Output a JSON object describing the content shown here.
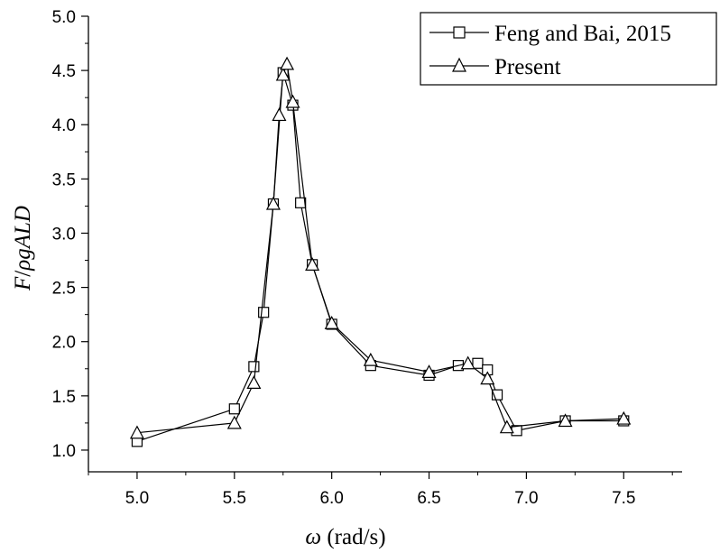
{
  "chart_data": {
    "type": "line",
    "xlabel": {
      "symbol": "ω",
      "unit": " (rad/s)"
    },
    "ylabel": {
      "prefix": "F",
      "sep": "/",
      "rest": "ρgALD"
    },
    "xlim": [
      4.75,
      7.8
    ],
    "ylim": [
      0.8,
      5.0
    ],
    "x_ticks": [
      5.0,
      5.5,
      6.0,
      6.5,
      7.0,
      7.5
    ],
    "x_tick_labels": [
      "5.0",
      "5.5",
      "6.0",
      "6.5",
      "7.0",
      "7.5"
    ],
    "y_ticks": [
      1.0,
      1.5,
      2.0,
      2.5,
      3.0,
      3.5,
      4.0,
      4.5,
      5.0
    ],
    "y_tick_labels": [
      "1.0",
      "1.5",
      "2.0",
      "2.5",
      "3.0",
      "3.5",
      "4.0",
      "4.5",
      "5.0"
    ],
    "legend_position": "top-right",
    "grid": false,
    "series": [
      {
        "name": "Feng and Bai, 2015",
        "marker": "square",
        "color": "#000000",
        "points": [
          [
            5.0,
            1.08
          ],
          [
            5.5,
            1.38
          ],
          [
            5.6,
            1.77
          ],
          [
            5.65,
            2.27
          ],
          [
            5.7,
            3.27
          ],
          [
            5.75,
            4.48
          ],
          [
            5.8,
            4.18
          ],
          [
            5.84,
            3.28
          ],
          [
            5.9,
            2.71
          ],
          [
            6.0,
            2.16
          ],
          [
            6.2,
            1.78
          ],
          [
            6.5,
            1.69
          ],
          [
            6.65,
            1.78
          ],
          [
            6.75,
            1.8
          ],
          [
            6.8,
            1.74
          ],
          [
            6.85,
            1.51
          ],
          [
            6.95,
            1.18
          ],
          [
            7.2,
            1.27
          ],
          [
            7.5,
            1.27
          ]
        ]
      },
      {
        "name": "Present",
        "marker": "triangle",
        "color": "#000000",
        "points": [
          [
            5.0,
            1.16
          ],
          [
            5.5,
            1.25
          ],
          [
            5.6,
            1.62
          ],
          [
            5.7,
            3.27
          ],
          [
            5.73,
            4.09
          ],
          [
            5.75,
            4.46
          ],
          [
            5.77,
            4.56
          ],
          [
            5.8,
            4.21
          ],
          [
            5.9,
            2.71
          ],
          [
            6.0,
            2.17
          ],
          [
            6.2,
            1.83
          ],
          [
            6.5,
            1.72
          ],
          [
            6.7,
            1.8
          ],
          [
            6.8,
            1.66
          ],
          [
            6.9,
            1.21
          ],
          [
            7.2,
            1.27
          ],
          [
            7.5,
            1.29
          ]
        ]
      }
    ]
  }
}
